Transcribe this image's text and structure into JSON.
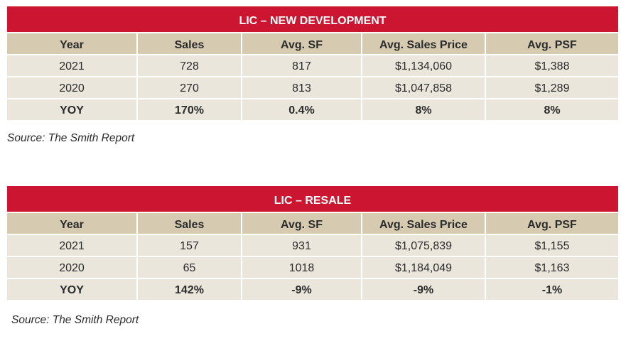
{
  "colors": {
    "title_bg": "#cc1530",
    "header_bg": "#d6cbb0",
    "row_bg": "#ebe6dc"
  },
  "tables": [
    {
      "title": "LIC – NEW DEVELOPMENT",
      "headers": [
        "Year",
        "Sales",
        "Avg. SF",
        "Avg. Sales Price",
        "Avg. PSF"
      ],
      "rows": [
        [
          "2021",
          "728",
          "817",
          "$1,134,060",
          "$1,388"
        ],
        [
          "2020",
          "270",
          "813",
          "$1,047,858",
          "$1,289"
        ]
      ],
      "yoy": [
        "YOY",
        "170%",
        "0.4%",
        "8%",
        "8%"
      ],
      "source": "Source: The Smith Report"
    },
    {
      "title": "LIC – RESALE",
      "headers": [
        "Year",
        "Sales",
        "Avg. SF",
        "Avg. Sales Price",
        "Avg. PSF"
      ],
      "rows": [
        [
          "2021",
          "157",
          "931",
          "$1,075,839",
          "$1,155"
        ],
        [
          "2020",
          "65",
          "1018",
          "$1,184,049",
          "$1,163"
        ]
      ],
      "yoy": [
        "YOY",
        "142%",
        "-9%",
        "-9%",
        "-1%"
      ],
      "source": "Source: The Smith Report"
    }
  ]
}
